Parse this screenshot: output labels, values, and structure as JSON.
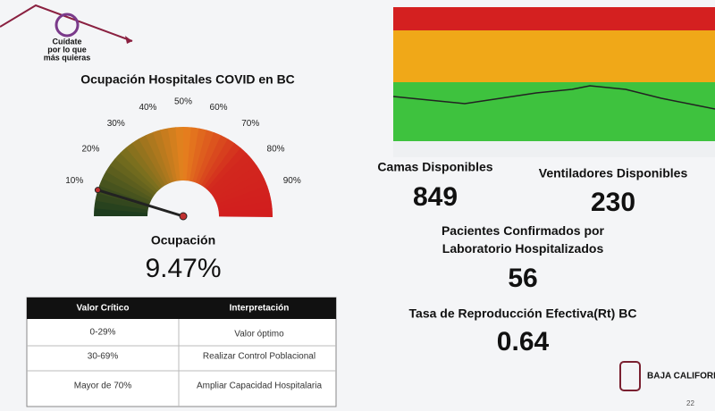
{
  "logo": {
    "lines": [
      "Cuídate",
      "por lo que",
      "más quieras"
    ]
  },
  "gauge": {
    "title": "Ocupación Hospitales COVID en BC",
    "min": 0,
    "max": 100,
    "ticks": [
      {
        "value": 10,
        "label": "10%"
      },
      {
        "value": 20,
        "label": "20%"
      },
      {
        "value": 30,
        "label": "30%"
      },
      {
        "value": 40,
        "label": "40%"
      },
      {
        "value": 50,
        "label": "50%"
      },
      {
        "value": 60,
        "label": "60%"
      },
      {
        "value": 70,
        "label": "70%"
      },
      {
        "value": 80,
        "label": "80%"
      },
      {
        "value": 90,
        "label": "90%"
      }
    ],
    "label": "Ocupación",
    "value": 9.47,
    "value_label": "9.47%"
  },
  "table": {
    "header": [
      "Valor Crítico",
      "Interpretación"
    ],
    "rows": [
      [
        "0-29%",
        "Valor óptimo"
      ],
      [
        "30-69%",
        "Realizar Control Poblacional"
      ],
      [
        "Mayor de 70%",
        "Ampliar Capacidad Hospitalaria"
      ]
    ]
  },
  "stats": [
    {
      "label": "Camas Disponibles",
      "value": 849
    },
    {
      "label": "Ventiladores Disponibles",
      "value": 230
    },
    {
      "label": "Pacientes Confirmados por Laboratorio Hospitalizados",
      "value": 56
    },
    {
      "label": "Tasa de Reproducción Efectiva(Rt) BC",
      "value": 0.64
    }
  ],
  "brand": {
    "name": "BAJA CALIFORNIA"
  },
  "page_number": 22
}
